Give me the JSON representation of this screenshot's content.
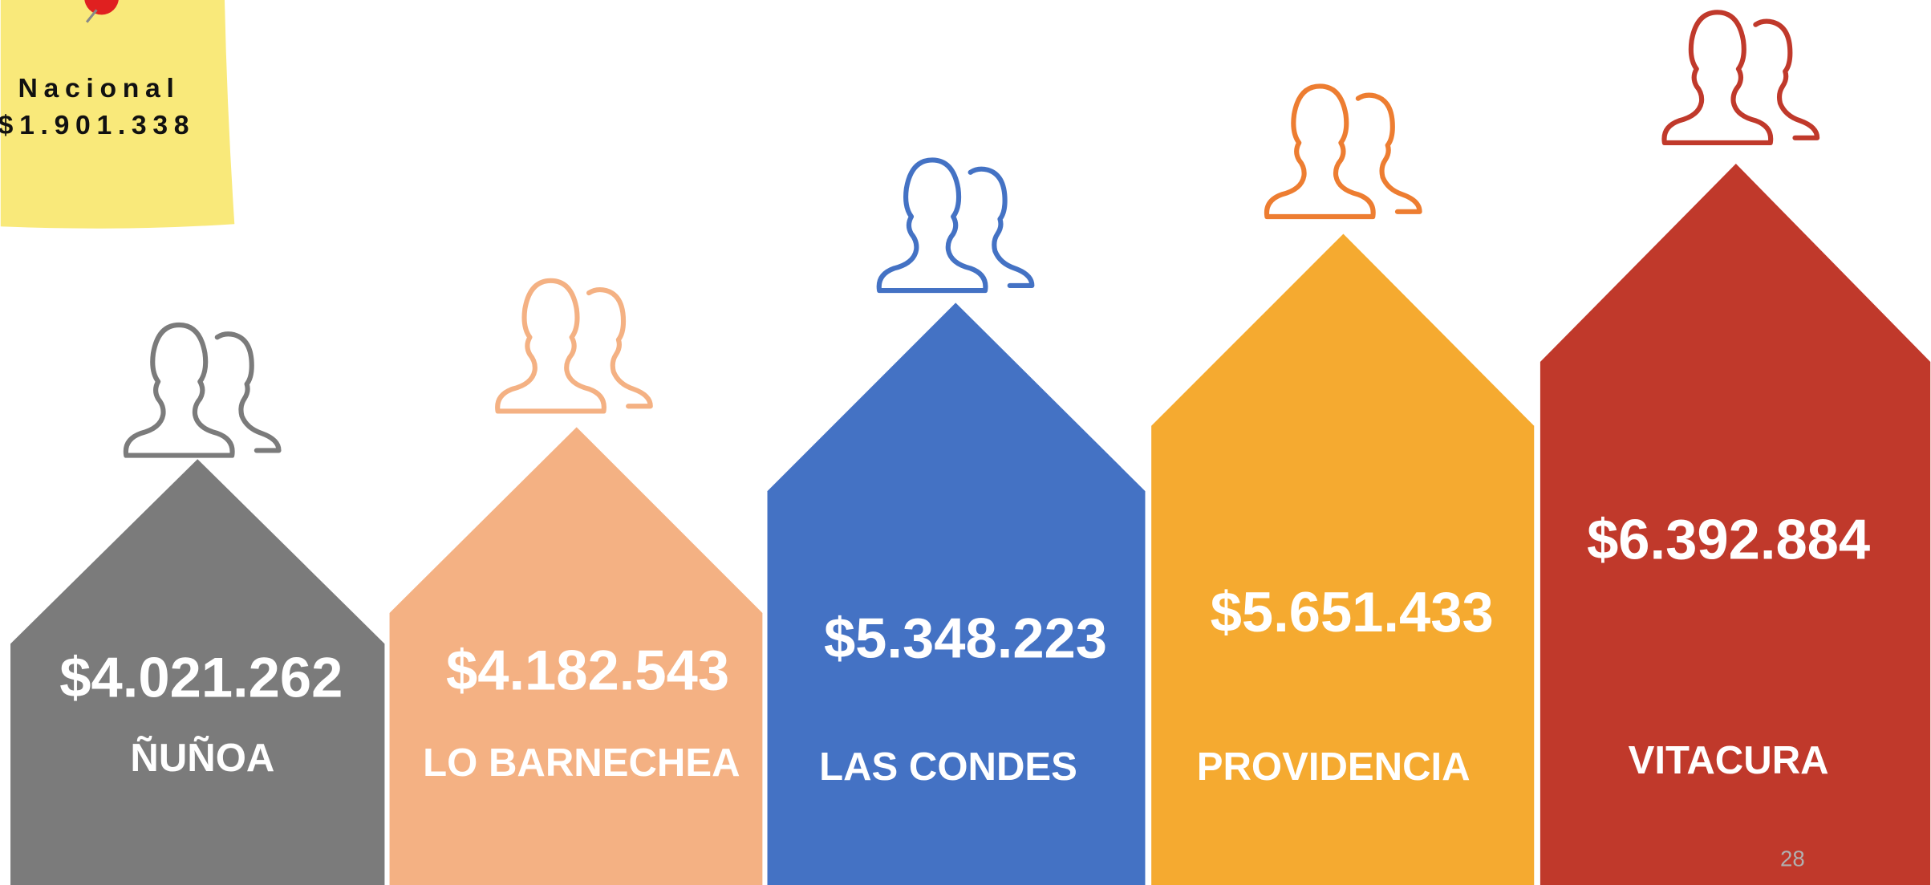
{
  "note": {
    "title": "Nacional",
    "value": "$1.901.338"
  },
  "items": [
    {
      "value": "$4.021.262",
      "name": "ÑUÑOA"
    },
    {
      "value": "$4.182.543",
      "name": "LO BARNECHEA"
    },
    {
      "value": "$5.348.223",
      "name": "LAS CONDES"
    },
    {
      "value": "$5.651.433",
      "name": "PROVIDENCIA"
    },
    {
      "value": "$6.392.884",
      "name": "VITACURA"
    }
  ],
  "page_number": "28"
}
